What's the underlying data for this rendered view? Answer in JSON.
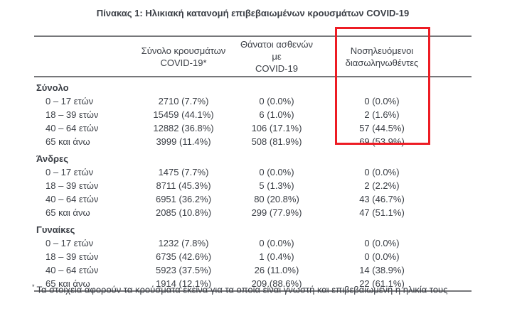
{
  "title": "Πίνακας 1: Ηλικιακή κατανομή επιβεβαιωμένων κρουσμάτων COVID-19",
  "table": {
    "headers": {
      "cases": {
        "line1": "Σύνολο κρουσμάτων",
        "line2": "COVID-19*"
      },
      "deaths": {
        "line1": "Θάνατοι ασθενών με",
        "line2": "COVID-19"
      },
      "intubated": {
        "line1": "Νοσηλευόμενοι",
        "line2": "διασωληνωθέντες"
      }
    },
    "sections": [
      {
        "label": "Σύνολο",
        "rows": [
          {
            "age": "0 – 17 ετών",
            "cases": "2710 (7.7%)",
            "deaths": "0 (0.0%)",
            "intubated": "0 (0.0%)"
          },
          {
            "age": "18 – 39 ετών",
            "cases": "15459 (44.1%)",
            "deaths": "6 (1.0%)",
            "intubated": "2 (1.6%)"
          },
          {
            "age": "40 – 64 ετών",
            "cases": "12882 (36.8%)",
            "deaths": "106 (17.1%)",
            "intubated": "57 (44.5%)"
          },
          {
            "age": "65 και άνω",
            "cases": "3999 (11.4%)",
            "deaths": "508 (81.9%)",
            "intubated": "69 (53.9%)"
          }
        ]
      },
      {
        "label": "Άνδρες",
        "rows": [
          {
            "age": "0 – 17 ετών",
            "cases": "1475 (7.7%)",
            "deaths": "0 (0.0%)",
            "intubated": "0 (0.0%)"
          },
          {
            "age": "18 – 39 ετών",
            "cases": "8711 (45.3%)",
            "deaths": "5 (1.3%)",
            "intubated": "2 (2.2%)"
          },
          {
            "age": "40 – 64 ετών",
            "cases": "6951 (36.2%)",
            "deaths": "80 (20.8%)",
            "intubated": "43 (46.7%)"
          },
          {
            "age": "65 και άνω",
            "cases": "2085 (10.8%)",
            "deaths": "299 (77.9%)",
            "intubated": "47 (51.1%)"
          }
        ]
      },
      {
        "label": "Γυναίκες",
        "rows": [
          {
            "age": "0 – 17 ετών",
            "cases": "1232 (7.8%)",
            "deaths": "0 (0.0%)",
            "intubated": "0 (0.0%)"
          },
          {
            "age": "18 – 39 ετών",
            "cases": "6735 (42.6%)",
            "deaths": "1 (0.4%)",
            "intubated": "0 (0.0%)"
          },
          {
            "age": "40 – 64 ετών",
            "cases": "5923 (37.5%)",
            "deaths": "26 (11.0%)",
            "intubated": "14 (38.9%)"
          },
          {
            "age": "65 και άνω",
            "cases": "1914 (12.1%)",
            "deaths": "209 (88.6%)",
            "intubated": "22 (61.1%)"
          }
        ]
      }
    ]
  },
  "footnote": {
    "marker": "*",
    "text": "Τα στοιχεία αφορούν τα κρούσματα εκείνα για τα οποία είναι γνωστή και επιβεβαιωμένη η ηλικία τους"
  },
  "colors": {
    "highlight": "#ed1c24",
    "rule": "#76777a",
    "text": "#3a3e45"
  }
}
